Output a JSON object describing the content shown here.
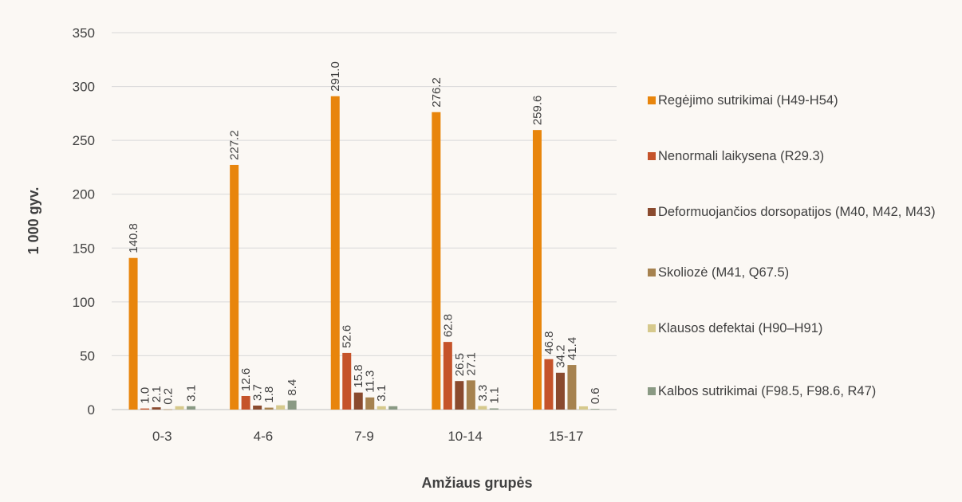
{
  "chart_data": {
    "type": "bar",
    "categories": [
      "0-3",
      "4-6",
      "7-9",
      "10-14",
      "15-17"
    ],
    "series": [
      {
        "name": "Regėjimo sutrikimai (H49-H54)",
        "color": "#e8850c",
        "values": [
          140.8,
          227.2,
          291.0,
          276.2,
          259.6
        ],
        "labels": [
          "140.8",
          "227.2",
          "291.0",
          "276.2",
          "259.6"
        ]
      },
      {
        "name": "Nenormali laikysena (R29.3)",
        "color": "#c5532a",
        "values": [
          1.0,
          12.6,
          52.6,
          62.8,
          46.8
        ],
        "labels": [
          "1.0",
          "12.6",
          "52.6",
          "62.8",
          "46.8"
        ]
      },
      {
        "name": "Deformuojančios dorsopatijos (M40, M42, M43)",
        "color": "#8a4a2e",
        "values": [
          2.1,
          3.7,
          15.8,
          26.5,
          34.2
        ],
        "labels": [
          "2.1",
          "3.7",
          "15.8",
          "26.5",
          "34.2"
        ]
      },
      {
        "name": "Skoliozė (M41, Q67.5)",
        "color": "#a6824f",
        "values": [
          0.2,
          1.8,
          11.3,
          27.1,
          41.4
        ],
        "labels": [
          "0.2",
          "1.8",
          "11.3",
          "27.1",
          "41.4"
        ]
      },
      {
        "name": "Klausos defektai (H90–H91)",
        "color": "#d6c98c",
        "values": [
          3.1,
          4.0,
          3.1,
          3.3,
          3.0
        ],
        "labels": [
          "",
          "",
          "3.1",
          "3.3",
          ""
        ]
      },
      {
        "name": "Kalbos sutrikimai (F98.5, F98.6, R47)",
        "color": "#8a9a84",
        "values": [
          3.1,
          8.4,
          3.1,
          1.1,
          0.6
        ],
        "labels": [
          "3.1",
          "8.4",
          "",
          "1.1",
          "0.6"
        ]
      }
    ],
    "xlabel": "Amžiaus grupės",
    "ylabel": "1 000 gyv.",
    "ylim": [
      0,
      350
    ],
    "yticks": [
      "0",
      "50",
      "100",
      "150",
      "200",
      "250",
      "300",
      "350"
    ],
    "grid": true,
    "legend_position": "right"
  }
}
